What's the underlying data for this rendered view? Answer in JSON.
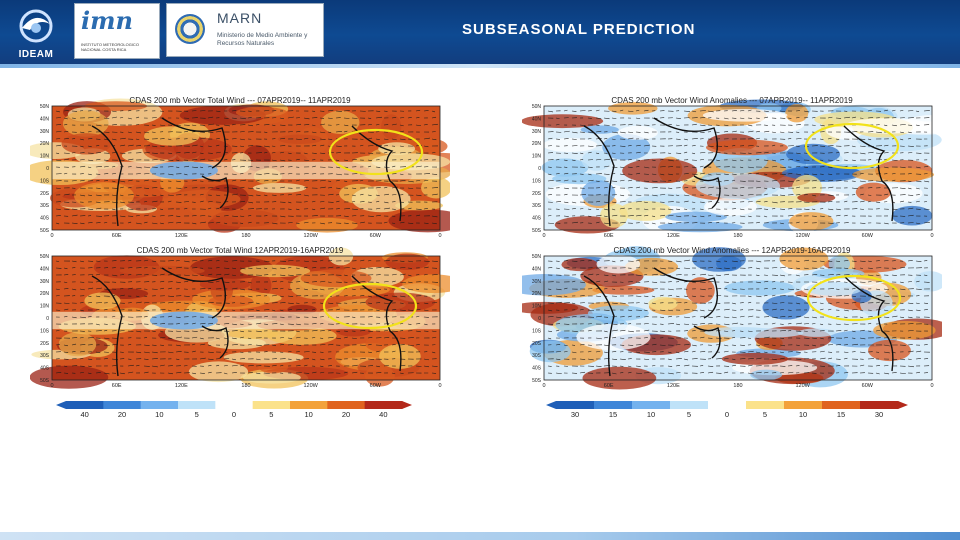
{
  "header": {
    "ideam_label": "IDEAM",
    "imn_label": "imn",
    "imn_subtitle": "INSTITUTO METEOROLOGICO NACIONAL COSTA RICA",
    "marn_label": "MARN",
    "marn_subtitle": "Ministerio de Medio Ambiente y Recursos Naturales",
    "title": "SUBSEASONAL PREDICTION"
  },
  "panels": [
    {
      "id": "tl",
      "title": "CDAS 200 mb Vector Total Wind --- 07APR2019-- 11APR2019",
      "lat_labels": [
        "50N",
        "40N",
        "30N",
        "20N",
        "10N",
        "0",
        "10S",
        "20S",
        "30S",
        "40S",
        "50S"
      ],
      "lon_labels": [
        "0",
        "60E",
        "120E",
        "180",
        "120W",
        "60W",
        "0"
      ]
    },
    {
      "id": "tr",
      "title": "CDAS 200 mb Vector Wind Anomalies --- 07APR2019-- 11APR2019",
      "lat_labels": [
        "50N",
        "40N",
        "30N",
        "20N",
        "10N",
        "0",
        "10S",
        "20S",
        "30S",
        "40S",
        "50S"
      ],
      "lon_labels": [
        "0",
        "60E",
        "120E",
        "180",
        "120W",
        "60W",
        "0"
      ]
    },
    {
      "id": "bl",
      "title": "CDAS 200 mb Vector Total Wind 12APR2019-16APR2019",
      "lat_labels": [
        "50N",
        "40N",
        "30N",
        "20N",
        "10N",
        "0",
        "10S",
        "20S",
        "30S",
        "40S",
        "50S"
      ],
      "lon_labels": [
        "0",
        "60E",
        "120E",
        "180",
        "120W",
        "60W",
        "0"
      ]
    },
    {
      "id": "br",
      "title": "CDAS 200 mb Vector Wind Anomalies --- 12APR2019-16APR2019",
      "lat_labels": [
        "50N",
        "40N",
        "30N",
        "20N",
        "10N",
        "0",
        "10S",
        "20S",
        "30S",
        "40S",
        "50S"
      ],
      "lon_labels": [
        "0",
        "60E",
        "120E",
        "180",
        "120W",
        "60W",
        "0"
      ]
    }
  ],
  "colorbars": [
    {
      "id": "left",
      "labels": [
        "40",
        "20",
        "10",
        "5",
        "0",
        "5",
        "10",
        "20",
        "40"
      ]
    },
    {
      "id": "right",
      "labels": [
        "30",
        "15",
        "10",
        "5",
        "0",
        "5",
        "10",
        "15",
        "30"
      ]
    }
  ],
  "colors": {
    "header": "#0e4a92",
    "highlight": "#f2e21a",
    "ocean_red": "#c8401c"
  }
}
